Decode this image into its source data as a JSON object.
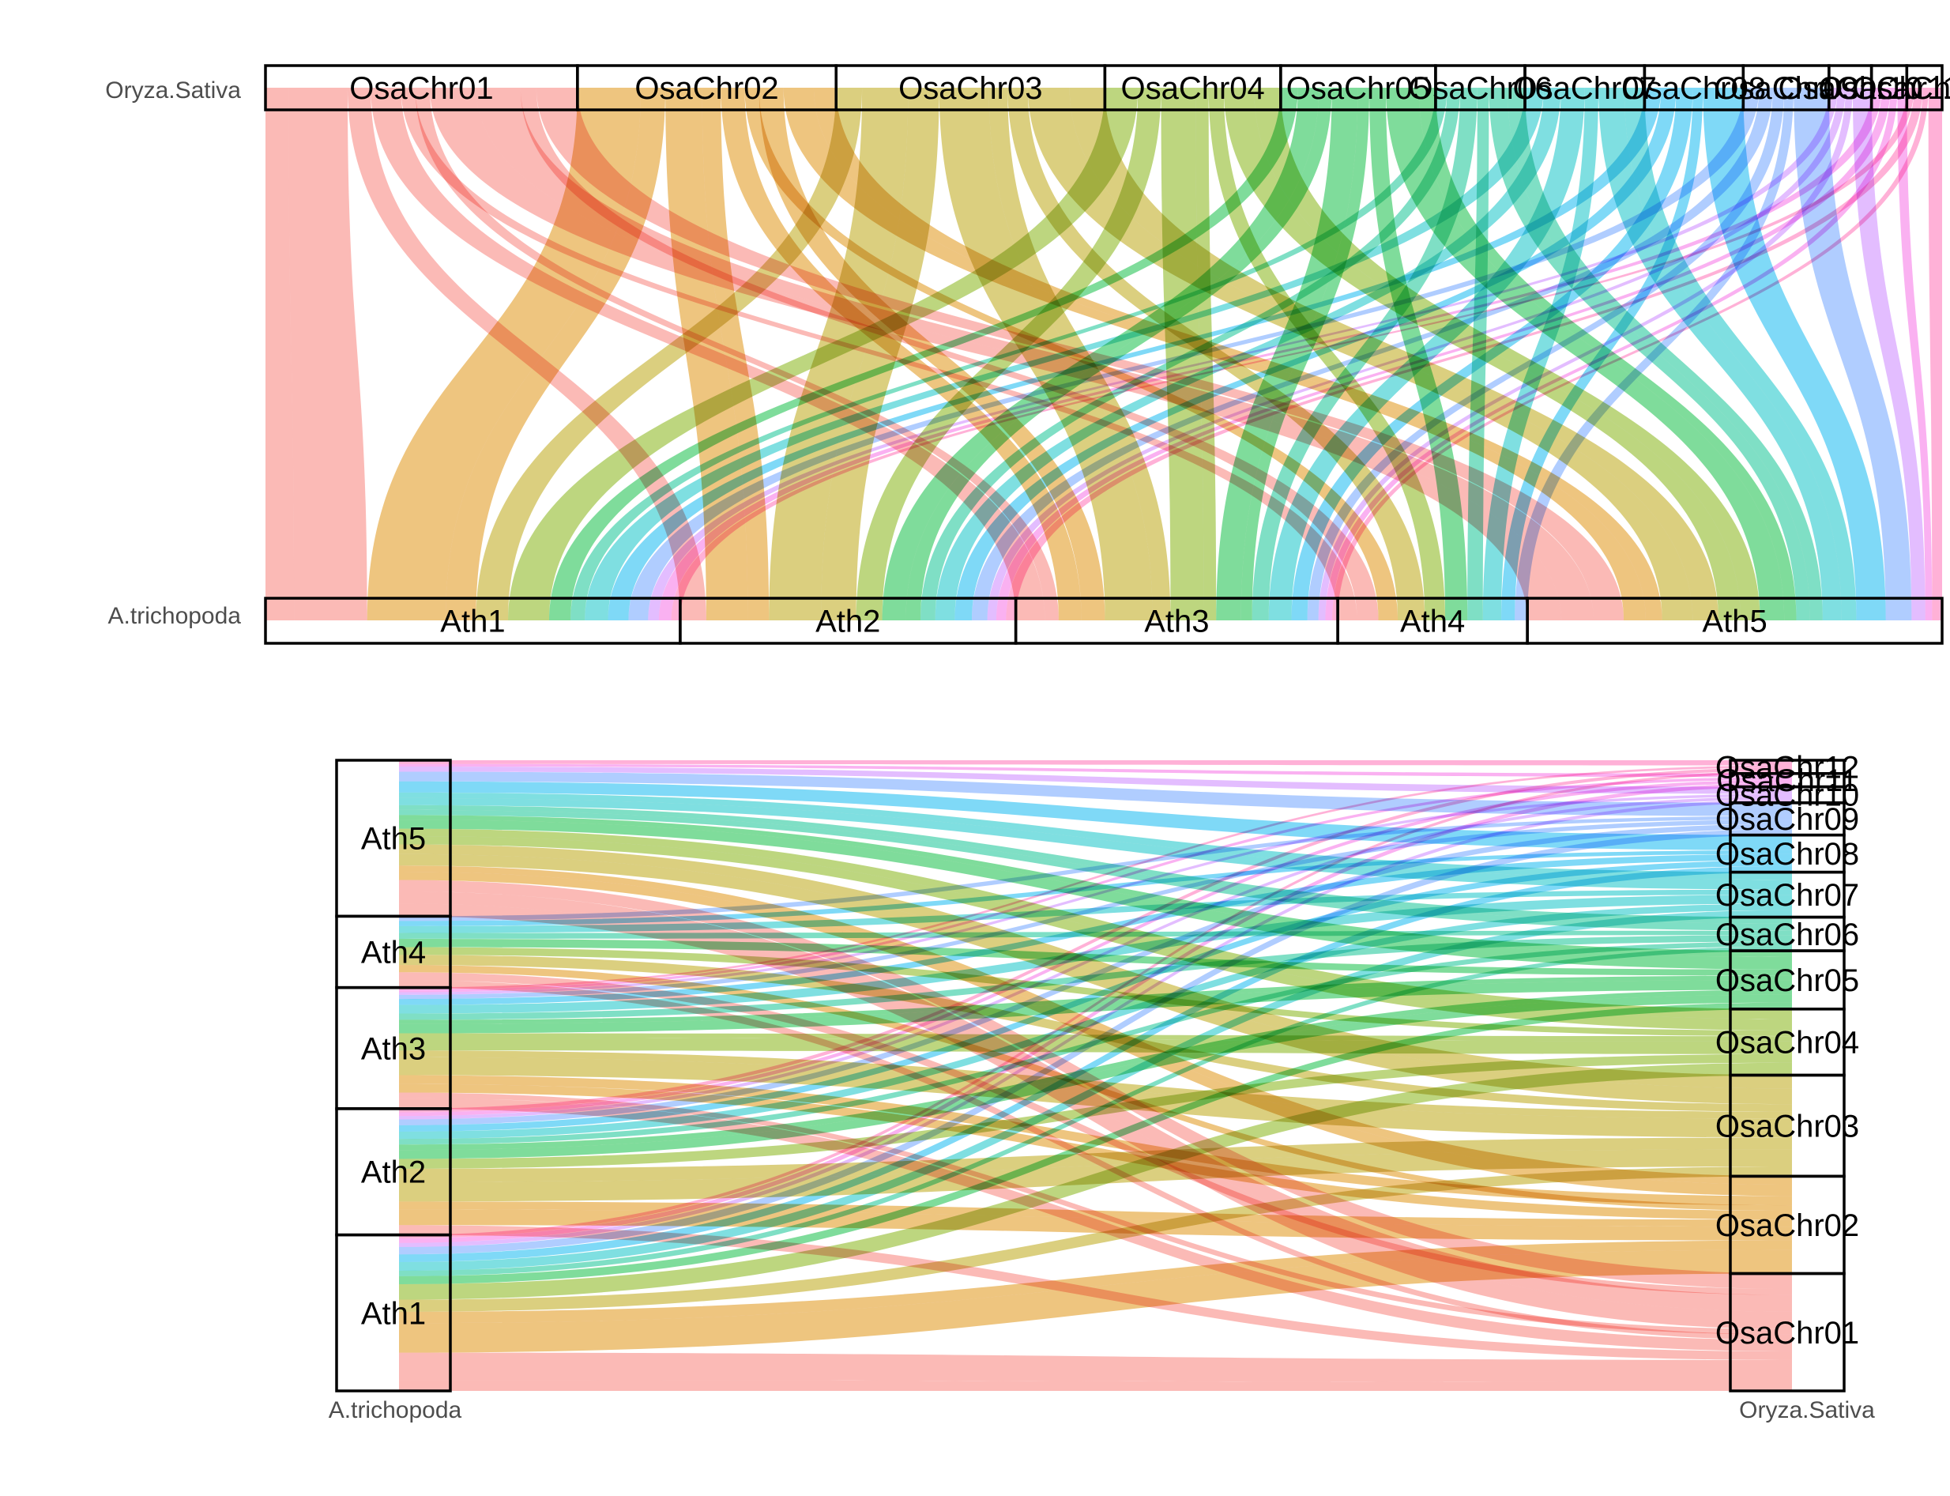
{
  "species": {
    "query": "Oryza.Sativa",
    "reference": "A.trichopoda"
  },
  "osa_chromosomes": [
    {
      "name": "OsaChr01",
      "size": 43.3,
      "color": "#F8766D"
    },
    {
      "name": "OsaChr02",
      "size": 35.9,
      "color": "#DE8C00"
    },
    {
      "name": "OsaChr03",
      "size": 37.3,
      "color": "#B79F00"
    },
    {
      "name": "OsaChr04",
      "size": 24.4,
      "color": "#7CAE00"
    },
    {
      "name": "OsaChr05",
      "size": 21.5,
      "color": "#00BA38"
    },
    {
      "name": "OsaChr06",
      "size": 12.4,
      "color": "#00C08B"
    },
    {
      "name": "OsaChr07",
      "size": 16.6,
      "color": "#00BFC4"
    },
    {
      "name": "OsaChr08",
      "size": 13.7,
      "color": "#00B4F0"
    },
    {
      "name": "OsaChr09",
      "size": 11.9,
      "color": "#619CFF"
    },
    {
      "name": "OsaChr10",
      "size": 5.9,
      "color": "#C77CFF"
    },
    {
      "name": "OsaChr11",
      "size": 4.9,
      "color": "#F564E3"
    },
    {
      "name": "OsaChr12",
      "size": 4.9,
      "color": "#FF64B0"
    }
  ],
  "ath_chromosomes": [
    {
      "name": "Ath1",
      "size": 30.4
    },
    {
      "name": "Ath2",
      "size": 24.6
    },
    {
      "name": "Ath3",
      "size": 23.6
    },
    {
      "name": "Ath4",
      "size": 13.9
    },
    {
      "name": "Ath5",
      "size": 30.4
    }
  ],
  "links": [
    {
      "osa": "OsaChr01",
      "ath": "Ath1",
      "w": 3.2
    },
    {
      "osa": "OsaChr01",
      "ath": "Ath1",
      "w": 8.2
    },
    {
      "osa": "OsaChr01",
      "ath": "Ath2",
      "w": 3.2
    },
    {
      "osa": "OsaChr01",
      "ath": "Ath3",
      "w": 4.2
    },
    {
      "osa": "OsaChr01",
      "ath": "Ath4",
      "w": 2.0
    },
    {
      "osa": "OsaChr01",
      "ath": "Ath3",
      "w": 2.0
    },
    {
      "osa": "OsaChr01",
      "ath": "Ath5",
      "w": 6.4
    },
    {
      "osa": "OsaChr01",
      "ath": "Ath5",
      "w": 6.2
    },
    {
      "osa": "OsaChr01",
      "ath": "Ath4",
      "w": 2.2
    },
    {
      "osa": "OsaChr01",
      "ath": "Ath5",
      "w": 5.7
    },
    {
      "osa": "OsaChr02",
      "ath": "Ath1",
      "w": 8.8
    },
    {
      "osa": "OsaChr02",
      "ath": "Ath1",
      "w": 3.4
    },
    {
      "osa": "OsaChr02",
      "ath": "Ath2",
      "w": 5.1
    },
    {
      "osa": "OsaChr02",
      "ath": "Ath2",
      "w": 2.6
    },
    {
      "osa": "OsaChr02",
      "ath": "Ath3",
      "w": 3.3
    },
    {
      "osa": "OsaChr02",
      "ath": "Ath4",
      "w": 2.0
    },
    {
      "osa": "OsaChr02",
      "ath": "Ath3",
      "w": 3.4
    },
    {
      "osa": "OsaChr02",
      "ath": "Ath5",
      "w": 4.2
    },
    {
      "osa": "OsaChr02",
      "ath": "Ath5",
      "w": 3.1
    },
    {
      "osa": "OsaChr03",
      "ath": "Ath1",
      "w": 3.6
    },
    {
      "osa": "OsaChr03",
      "ath": "Ath2",
      "w": 6.4
    },
    {
      "osa": "OsaChr03",
      "ath": "Ath2",
      "w": 4.3
    },
    {
      "osa": "OsaChr03",
      "ath": "Ath3",
      "w": 6.9
    },
    {
      "osa": "OsaChr03",
      "ath": "Ath3",
      "w": 2.6
    },
    {
      "osa": "OsaChr03",
      "ath": "Ath4",
      "w": 2.8
    },
    {
      "osa": "OsaChr03",
      "ath": "Ath5",
      "w": 5.8
    },
    {
      "osa": "OsaChr03",
      "ath": "Ath5",
      "w": 4.9
    },
    {
      "osa": "OsaChr04",
      "ath": "Ath1",
      "w": 4.6
    },
    {
      "osa": "OsaChr04",
      "ath": "Ath2",
      "w": 3.2
    },
    {
      "osa": "OsaChr04",
      "ath": "Ath3",
      "w": 4.8
    },
    {
      "osa": "OsaChr04",
      "ath": "Ath3",
      "w": 1.8
    },
    {
      "osa": "OsaChr04",
      "ath": "Ath4",
      "w": 2.1
    },
    {
      "osa": "OsaChr04",
      "ath": "Ath5",
      "w": 4.2
    },
    {
      "osa": "OsaChr04",
      "ath": "Ath5",
      "w": 3.7
    },
    {
      "osa": "OsaChr05",
      "ath": "Ath1",
      "w": 2.4
    },
    {
      "osa": "OsaChr05",
      "ath": "Ath2",
      "w": 2.9
    },
    {
      "osa": "OsaChr05",
      "ath": "Ath2",
      "w": 1.8
    },
    {
      "osa": "OsaChr05",
      "ath": "Ath3",
      "w": 3.6
    },
    {
      "osa": "OsaChr05",
      "ath": "Ath3",
      "w": 1.6
    },
    {
      "osa": "OsaChr05",
      "ath": "Ath4",
      "w": 2.3
    },
    {
      "osa": "OsaChr05",
      "ath": "Ath5",
      "w": 4.6
    },
    {
      "osa": "OsaChr05",
      "ath": "Ath5",
      "w": 2.3
    },
    {
      "osa": "OsaChr06",
      "ath": "Ath1",
      "w": 1.6
    },
    {
      "osa": "OsaChr06",
      "ath": "Ath2",
      "w": 1.8
    },
    {
      "osa": "OsaChr06",
      "ath": "Ath3",
      "w": 2.4
    },
    {
      "osa": "OsaChr06",
      "ath": "Ath4",
      "w": 1.6
    },
    {
      "osa": "OsaChr06",
      "ath": "Ath5",
      "w": 2.6
    },
    {
      "osa": "OsaChr06",
      "ath": "Ath5",
      "w": 2.4
    },
    {
      "osa": "OsaChr07",
      "ath": "Ath1",
      "w": 2.6
    },
    {
      "osa": "OsaChr07",
      "ath": "Ath2",
      "w": 2.4
    },
    {
      "osa": "OsaChr07",
      "ath": "Ath3",
      "w": 3.3
    },
    {
      "osa": "OsaChr07",
      "ath": "Ath4",
      "w": 1.9
    },
    {
      "osa": "OsaChr07",
      "ath": "Ath5",
      "w": 3.6
    },
    {
      "osa": "OsaChr07",
      "ath": "Ath5",
      "w": 2.8
    },
    {
      "osa": "OsaChr08",
      "ath": "Ath1",
      "w": 2.3
    },
    {
      "osa": "OsaChr08",
      "ath": "Ath2",
      "w": 2.1
    },
    {
      "osa": "OsaChr08",
      "ath": "Ath3",
      "w": 2.3
    },
    {
      "osa": "OsaChr08",
      "ath": "Ath4",
      "w": 1.4
    },
    {
      "osa": "OsaChr08",
      "ath": "Ath5",
      "w": 5.6
    },
    {
      "osa": "OsaChr09",
      "ath": "Ath1",
      "w": 2.2
    },
    {
      "osa": "OsaChr09",
      "ath": "Ath2",
      "w": 1.9
    },
    {
      "osa": "OsaChr09",
      "ath": "Ath3",
      "w": 1.6
    },
    {
      "osa": "OsaChr09",
      "ath": "Ath4",
      "w": 1.3
    },
    {
      "osa": "OsaChr09",
      "ath": "Ath5",
      "w": 4.9
    },
    {
      "osa": "OsaChr10",
      "ath": "Ath1",
      "w": 1.2
    },
    {
      "osa": "OsaChr10",
      "ath": "Ath2",
      "w": 1.1
    },
    {
      "osa": "OsaChr10",
      "ath": "Ath3",
      "w": 1.0
    },
    {
      "osa": "OsaChr10",
      "ath": "Ath5",
      "w": 2.6
    },
    {
      "osa": "OsaChr11",
      "ath": "Ath1",
      "w": 1.4
    },
    {
      "osa": "OsaChr11",
      "ath": "Ath2",
      "w": 1.2
    },
    {
      "osa": "OsaChr11",
      "ath": "Ath3",
      "w": 1.0
    },
    {
      "osa": "OsaChr11",
      "ath": "Ath5",
      "w": 1.3
    },
    {
      "osa": "OsaChr12",
      "ath": "Ath1",
      "w": 1.0
    },
    {
      "osa": "OsaChr12",
      "ath": "Ath2",
      "w": 1.2
    },
    {
      "osa": "OsaChr12",
      "ath": "Ath3",
      "w": 0.8
    },
    {
      "osa": "OsaChr12",
      "ath": "Ath5",
      "w": 1.9
    }
  ]
}
